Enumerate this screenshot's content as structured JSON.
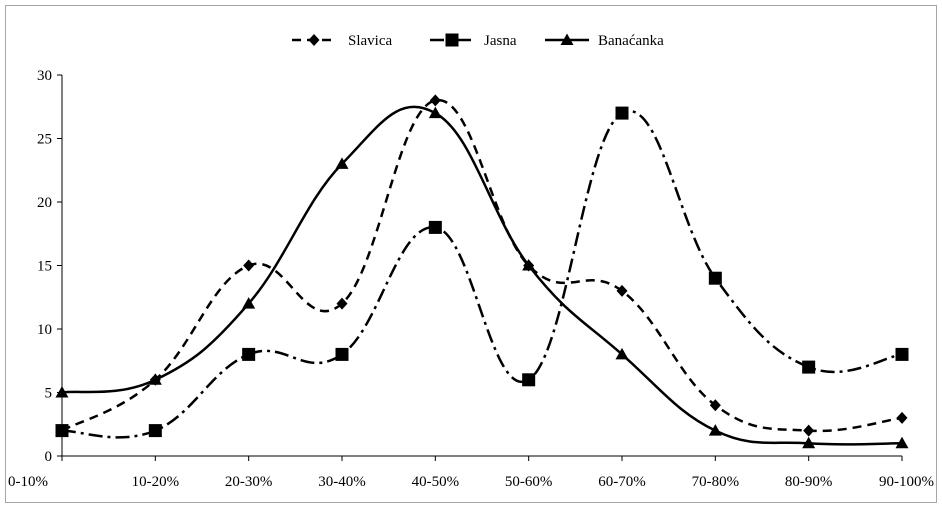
{
  "chart_data": {
    "type": "line",
    "smooth": true,
    "title": "",
    "xlabel": "",
    "ylabel": "",
    "categories": [
      "0-10%",
      "10-20%",
      "20-30%",
      "30-40%",
      "40-50%",
      "50-60%",
      "60-70%",
      "70-80%",
      "80-90%",
      "90-100%"
    ],
    "ylim": [
      0,
      30
    ],
    "yticks": [
      "0",
      "5",
      "10",
      "15",
      "20",
      "25",
      "30"
    ],
    "grid": false,
    "legend_position": "top",
    "series": [
      {
        "name": "Slavica",
        "marker": "diamond",
        "dash": "dashed",
        "color": "#000000",
        "values": [
          2,
          6,
          15,
          12,
          28,
          15,
          13,
          4,
          2,
          3
        ]
      },
      {
        "name": "Jasna",
        "marker": "square",
        "dash": "dash-dot",
        "color": "#000000",
        "values": [
          2,
          2,
          8,
          8,
          18,
          6,
          27,
          14,
          7,
          8
        ]
      },
      {
        "name": "Banaćanka",
        "marker": "triangle",
        "dash": "solid",
        "color": "#000000",
        "values": [
          5,
          6,
          12,
          23,
          27,
          15,
          8,
          2,
          1,
          1
        ]
      }
    ]
  }
}
